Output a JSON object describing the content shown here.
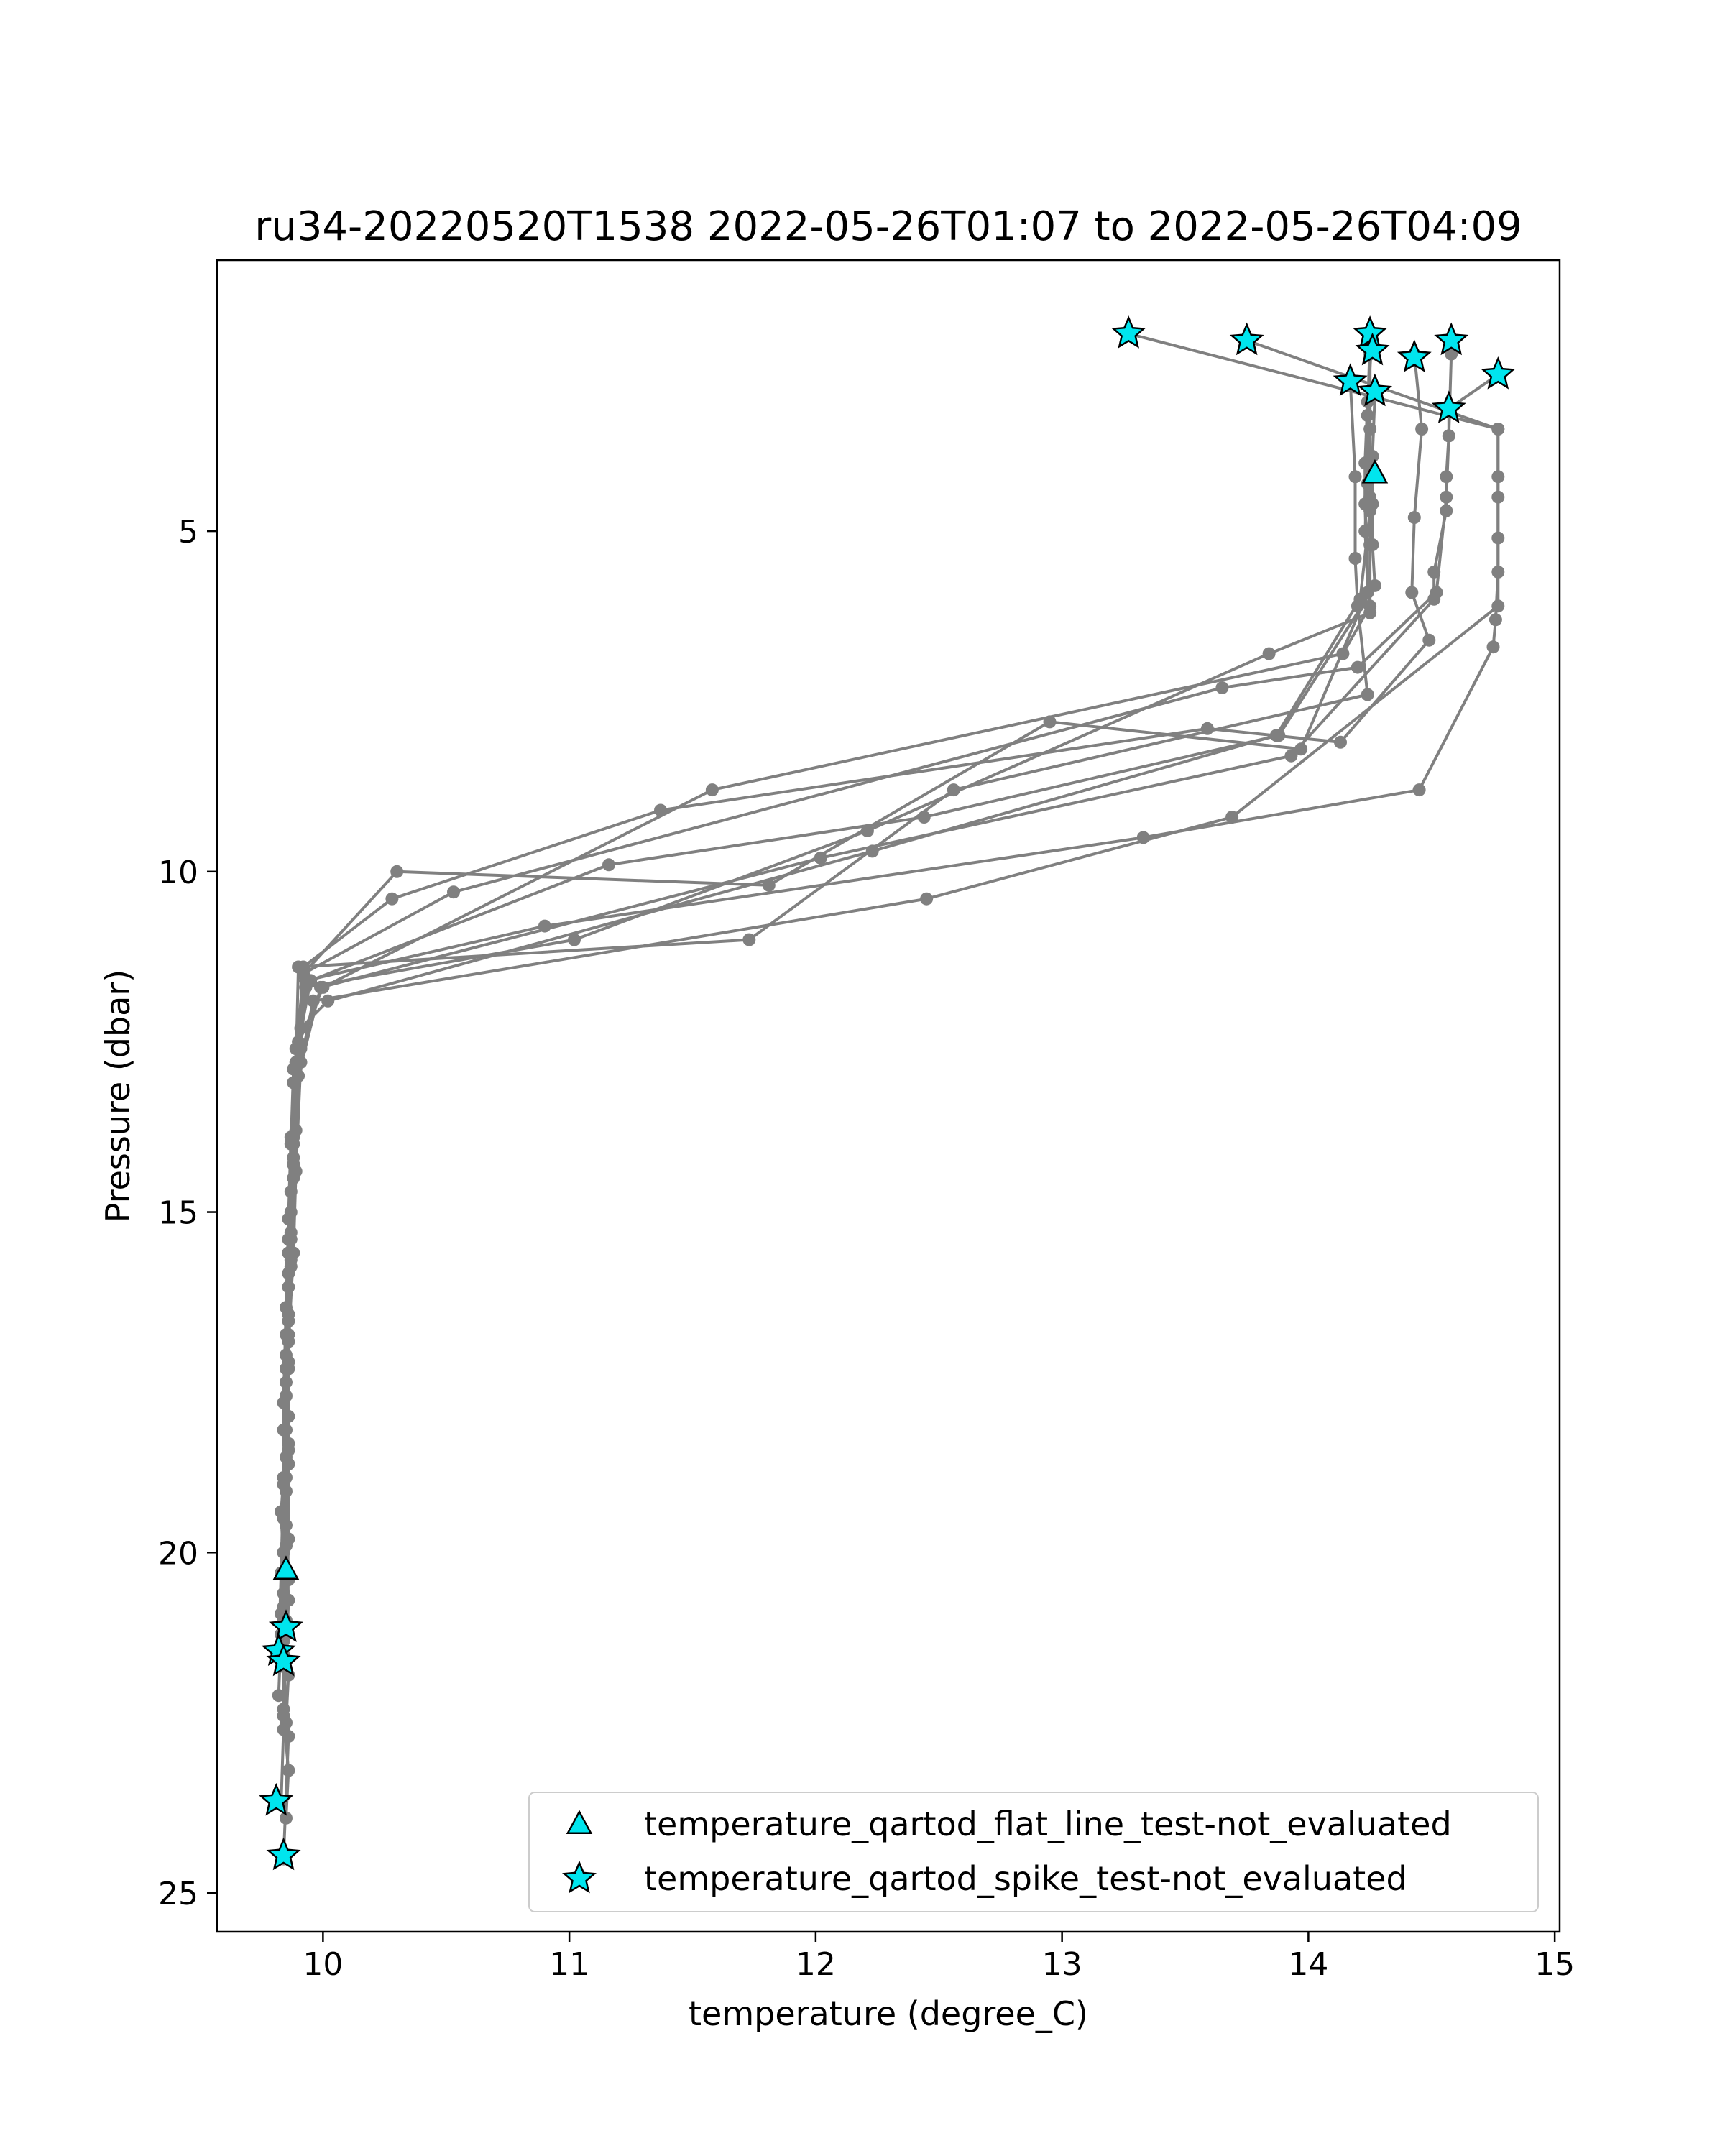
{
  "chart_data": {
    "type": "scatter",
    "title": "ru34-20220520T1538 2022-05-26T01:07 to 2022-05-26T04:09",
    "xlabel": "temperature (degree_C)",
    "ylabel": "Pressure (dbar)",
    "xlim": [
      9.57,
      15.02
    ],
    "ylim": [
      25.57,
      1.02
    ],
    "y_inverted": true,
    "xticks": [
      10,
      11,
      12,
      13,
      14,
      15
    ],
    "yticks": [
      5,
      10,
      15,
      20,
      25
    ],
    "grid": false,
    "legend_position": "lower-right",
    "colors": {
      "profile_line": "#808080",
      "marker_fill": "#00e5ee",
      "marker_edge": "#000000"
    },
    "series": [
      {
        "style": "profile",
        "x": [
          13.27,
          14.77,
          14.77,
          14.77,
          14.76,
          14.75,
          14.45,
          13.33,
          10.9,
          9.93,
          9.9,
          9.87,
          9.86,
          9.85,
          9.84,
          9.85,
          9.84,
          9.84,
          9.86,
          9.84
        ],
        "y": [
          2.1,
          3.5,
          4.5,
          5.6,
          6.3,
          6.7,
          8.8,
          9.5,
          10.8,
          11.6,
          12.5,
          13.9,
          15.1,
          16.4,
          17.8,
          18.9,
          20.8,
          21.6,
          22.7,
          24.5
        ]
      },
      {
        "style": "profile",
        "x": [
          13.75,
          14.77,
          14.77,
          14.77,
          14.77,
          13.69,
          12.45,
          9.96,
          9.91,
          9.89,
          9.88,
          9.86,
          9.86,
          9.86,
          9.85,
          9.84,
          9.86,
          9.85
        ],
        "y": [
          2.2,
          3.5,
          4.2,
          5.1,
          6.1,
          9.2,
          10.4,
          11.9,
          12.8,
          14.4,
          15.6,
          16.9,
          18.4,
          19.8,
          21.2,
          22.4,
          23.2,
          23.9
        ]
      },
      {
        "style": "profile",
        "x": [
          14.25,
          14.25,
          14.25,
          14.25,
          14.25,
          14.14,
          11.58,
          10.0,
          9.89,
          9.88,
          9.87,
          9.86,
          9.86,
          9.83,
          9.85,
          9.84,
          9.83
        ],
        "y": [
          2.1,
          2.3,
          4.5,
          5.2,
          6.1,
          6.8,
          8.8,
          11.7,
          12.6,
          14.0,
          15.3,
          16.6,
          18.0,
          19.4,
          21.0,
          22.6,
          23.7
        ]
      },
      {
        "style": "profile",
        "x": [
          14.25,
          14.25,
          14.25,
          14.25,
          14.21,
          13.87,
          12.23,
          10.02,
          9.91,
          9.89,
          9.87,
          9.86,
          9.85,
          9.85,
          9.86,
          9.84,
          9.84
        ],
        "y": [
          2.2,
          2.4,
          3.5,
          4.7,
          6.0,
          8.0,
          9.7,
          11.9,
          12.3,
          13.8,
          15.0,
          16.5,
          17.7,
          19.1,
          20.4,
          21.5,
          22.3
        ]
      },
      {
        "style": "profile",
        "x": [
          14.17,
          14.19,
          14.19,
          14.2,
          14.24,
          12.56,
          11.73,
          9.9,
          9.89,
          9.88,
          9.87,
          9.86,
          9.86,
          9.85,
          9.84,
          9.86,
          9.85
        ],
        "y": [
          2.8,
          4.2,
          5.4,
          6.1,
          7.4,
          8.8,
          11.0,
          11.4,
          12.9,
          14.3,
          15.8,
          17.3,
          18.7,
          19.9,
          21.0,
          21.8,
          22.5
        ]
      },
      {
        "style": "profile",
        "x": [
          14.27,
          14.26,
          14.26,
          14.26,
          14.27,
          13.88,
          12.44,
          11.16,
          9.95,
          9.88,
          9.87,
          9.86,
          9.85,
          9.84,
          9.85,
          9.86,
          9.85
        ],
        "y": [
          3.0,
          3.9,
          4.6,
          5.2,
          5.8,
          8.0,
          9.2,
          9.9,
          11.6,
          12.9,
          14.0,
          15.4,
          16.8,
          18.2,
          19.6,
          20.7,
          21.7
        ]
      },
      {
        "style": "profile",
        "x": [
          14.43,
          14.46,
          14.43,
          14.42,
          14.49,
          14.13,
          13.59,
          11.37,
          10.28,
          9.92,
          9.9,
          9.88,
          9.86,
          9.85,
          9.86,
          9.84,
          9.84
        ],
        "y": [
          2.4,
          3.5,
          4.8,
          5.9,
          6.6,
          8.1,
          7.9,
          9.1,
          10.4,
          11.4,
          12.8,
          14.2,
          15.6,
          17.1,
          18.5,
          20.0,
          21.3
        ]
      },
      {
        "style": "profile",
        "x": [
          14.58,
          14.58,
          14.57,
          14.56,
          14.56,
          14.51,
          14.51,
          13.93,
          12.02,
          9.99,
          9.9,
          9.88,
          9.86,
          9.85,
          9.84,
          9.83,
          9.82
        ],
        "y": [
          2.2,
          2.4,
          3.6,
          4.2,
          4.7,
          5.6,
          6.0,
          8.3,
          9.8,
          11.7,
          13.0,
          14.5,
          15.9,
          17.3,
          18.9,
          20.3,
          21.5
        ]
      },
      {
        "style": "profile",
        "x": [
          14.77,
          14.57,
          14.57,
          14.56,
          14.52,
          14.2,
          13.65,
          10.53,
          9.92,
          9.89,
          9.88,
          9.87,
          9.86,
          9.85,
          9.84,
          9.83,
          9.82
        ],
        "y": [
          2.7,
          3.2,
          3.6,
          4.5,
          5.9,
          7.0,
          7.3,
          10.3,
          11.5,
          12.8,
          14.3,
          15.7,
          17.2,
          18.6,
          20.0,
          21.2,
          22.1
        ]
      },
      {
        "style": "profile",
        "x": [
          14.26,
          14.24,
          14.23,
          14.23,
          14.24,
          13.97,
          12.95,
          11.81,
          10.3,
          9.92,
          9.88,
          9.87,
          9.86,
          9.85,
          9.84,
          9.84,
          9.83
        ],
        "y": [
          2.1,
          3.1,
          4.0,
          4.6,
          5.9,
          8.2,
          7.8,
          10.2,
          10.0,
          11.5,
          13.1,
          14.7,
          16.1,
          17.5,
          19.0,
          20.6,
          21.6
        ]
      },
      {
        "style": "profile",
        "x": [
          14.25,
          14.24,
          14.24,
          14.23,
          14.25,
          13.84,
          12.21,
          11.02,
          9.93,
          9.91,
          9.88,
          9.87,
          9.86,
          9.85,
          9.84,
          9.83,
          9.84
        ],
        "y": [
          2.2,
          3.3,
          4.3,
          5.0,
          6.2,
          6.8,
          9.4,
          11.0,
          11.7,
          12.6,
          13.9,
          15.4,
          16.8,
          18.2,
          19.5,
          20.9,
          21.6
        ]
      },
      {
        "name": "temperature_qartod_flat_line_test-not_evaluated",
        "style": "triangle",
        "x": [
          14.27,
          9.85
        ],
        "y": [
          4.15,
          20.25
        ]
      },
      {
        "name": "temperature_qartod_spike_test-not_evaluated",
        "style": "star",
        "x": [
          13.27,
          13.75,
          14.25,
          14.26,
          14.17,
          14.27,
          14.43,
          14.58,
          14.77,
          14.57,
          9.85,
          9.82,
          9.84,
          9.81,
          9.84
        ],
        "y": [
          2.1,
          2.2,
          2.1,
          2.35,
          2.8,
          2.95,
          2.45,
          2.2,
          2.7,
          3.2,
          21.1,
          21.45,
          21.6,
          23.65,
          24.45
        ]
      }
    ]
  }
}
